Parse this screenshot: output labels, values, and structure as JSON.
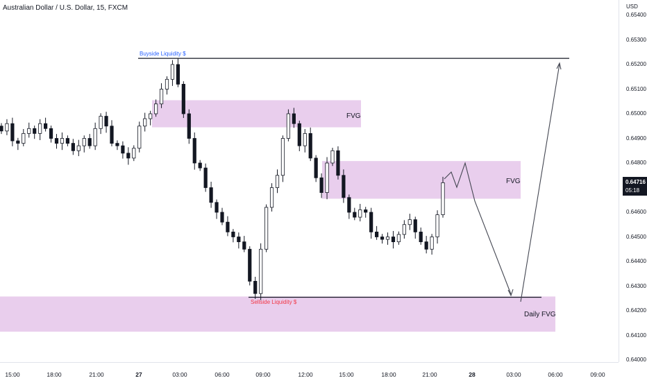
{
  "chart": {
    "title": "Australian Dollar / U.S. Dollar, 15, FXCM",
    "currency": "USD",
    "current_price": "0.64716",
    "countdown": "05:18",
    "price_ticks": [
      "0.65400",
      "0.65300",
      "0.65200",
      "0.65100",
      "0.65000",
      "0.64900",
      "0.64800",
      "0.64600",
      "0.64500",
      "0.64400",
      "0.64300",
      "0.64200",
      "0.64100",
      "0.64000"
    ],
    "time_ticks": [
      "15:00",
      "18:00",
      "21:00",
      "27",
      "03:00",
      "06:00",
      "09:00",
      "12:00",
      "15:00",
      "18:00",
      "21:00",
      "28",
      "03:00",
      "06:00",
      "09:00"
    ],
    "annotations": {
      "buyside_liquidity": "Buyside Liquidity $",
      "sellside_liquidity": "Sellside Liquidity $",
      "fvg_upper": "FVG",
      "fvg_middle": "FVG",
      "daily_fvg": "Daily FVG"
    },
    "colors": {
      "bull": "#ffffff",
      "bear": "#131722",
      "zone": "#e1bee7",
      "buyside_label": "#2962ff",
      "sellside_label": "#f23645",
      "line": "#131722"
    }
  },
  "chart_data": {
    "type": "candlestick",
    "title": "Australian Dollar / U.S. Dollar, 15, FXCM",
    "ylabel": "USD",
    "ylim": [
      0.6395,
      0.6545
    ],
    "price_levels": {
      "buyside_liquidity": 0.65225,
      "sellside_liquidity": 0.64255,
      "current": 0.64716
    },
    "zones": [
      {
        "name": "FVG",
        "from": 0.64945,
        "to": 0.65055
      },
      {
        "name": "FVG",
        "from": 0.64655,
        "to": 0.64808
      },
      {
        "name": "Daily FVG",
        "from": 0.64115,
        "to": 0.64258
      }
    ],
    "close_path": [
      0.6493,
      0.6496,
      0.6489,
      0.6488,
      0.6492,
      0.6494,
      0.6492,
      0.6496,
      0.6494,
      0.649,
      0.6488,
      0.649,
      0.6488,
      0.6485,
      0.6487,
      0.649,
      0.6487,
      0.6494,
      0.6499,
      0.6495,
      0.6488,
      0.6487,
      0.6484,
      0.6482,
      0.6486,
      0.6495,
      0.6498,
      0.65,
      0.6504,
      0.651,
      0.6514,
      0.652,
      0.6512,
      0.65,
      0.649,
      0.648,
      0.6478,
      0.647,
      0.6464,
      0.646,
      0.6456,
      0.6452,
      0.645,
      0.6448,
      0.6445,
      0.6432,
      0.6427,
      0.6445,
      0.6462,
      0.647,
      0.6475,
      0.649,
      0.65,
      0.6496,
      0.6487,
      0.6492,
      0.6482,
      0.6474,
      0.6468,
      0.648,
      0.6485,
      0.6475,
      0.6466,
      0.646,
      0.6458,
      0.6461,
      0.646,
      0.6452,
      0.645,
      0.6449,
      0.645,
      0.6448,
      0.6451,
      0.6455,
      0.6457,
      0.6452,
      0.6448,
      0.6445,
      0.645,
      0.6459,
      0.6472
    ]
  }
}
